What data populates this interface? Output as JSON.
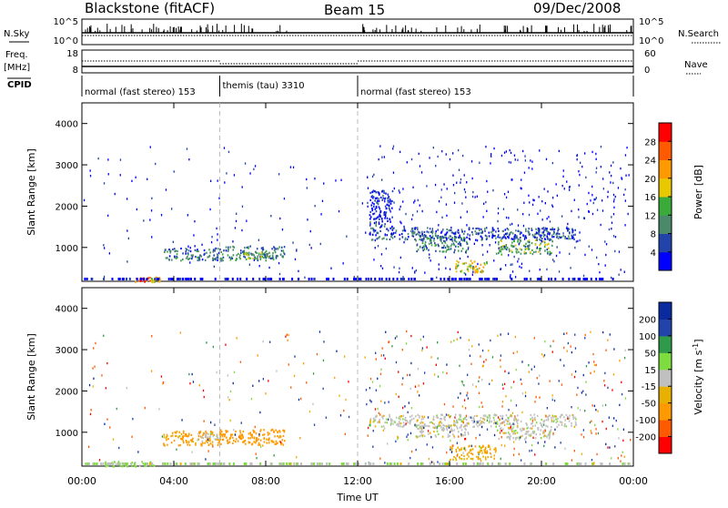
{
  "header": {
    "station": "Blackstone (fitACF)",
    "beam": "Beam 15",
    "date": "09/Dec/2008"
  },
  "top_panels": {
    "nsky_label": "N.Sky",
    "nsky_ticks": [
      "10^5",
      "10^0"
    ],
    "nsearch_label": "N.Search",
    "nsearch_ticks": [
      "10^5",
      "10^0"
    ],
    "freq_label": "Freq.",
    "freq_unit": "[MHz]",
    "freq_ticks": [
      "18",
      "8"
    ],
    "nave_label": "Nave",
    "nave_ticks": [
      "60",
      "0"
    ],
    "cpid_label": "CPID"
  },
  "cpid_segments": [
    {
      "label": "normal (fast stereo) 153",
      "start_hour": 0,
      "end_hour": 6
    },
    {
      "label": "themis (tau) 3310",
      "start_hour": 6,
      "end_hour": 12
    },
    {
      "label": "normal (fast stereo) 153",
      "start_hour": 12,
      "end_hour": 24
    }
  ],
  "colors": {
    "power_scale": [
      "#0000ff",
      "#2244aa",
      "#4a8a6a",
      "#3aaa3a",
      "#e8c800",
      "#ff9900",
      "#ff5a00",
      "#ff0000"
    ],
    "velocity_scale": [
      "#ff0000",
      "#ff5a00",
      "#ff9900",
      "#e8b000",
      "#c0c0c0",
      "#7fdc3f",
      "#2f9a4a",
      "#2244aa",
      "#0a2aa0"
    ]
  },
  "chart_data": [
    {
      "type": "heatmap",
      "name": "power",
      "xlabel": "",
      "ylabel": "Slant Range [km]",
      "xlim": [
        0,
        24
      ],
      "ylim": [
        180,
        4500
      ],
      "yticks": [
        1000,
        2000,
        3000,
        4000
      ],
      "colorbar": {
        "label": "Power [dB]",
        "range": [
          0,
          32
        ],
        "ticks": [
          4,
          8,
          12,
          16,
          20,
          24,
          28
        ]
      },
      "regions": [
        {
          "t0": 2.3,
          "t1": 3.0,
          "r0": 180,
          "r1": 300,
          "level": 0.8
        },
        {
          "t0": 3.0,
          "t1": 3.4,
          "r0": 180,
          "r1": 300,
          "level": 0.6
        },
        {
          "t0": 3.5,
          "t1": 6.0,
          "r0": 700,
          "r1": 1000,
          "level": 0.25
        },
        {
          "t0": 6.0,
          "t1": 8.8,
          "r0": 700,
          "r1": 1050,
          "level": 0.3
        },
        {
          "t0": 7.0,
          "t1": 8.2,
          "r0": 750,
          "r1": 900,
          "level": 0.45
        },
        {
          "t0": 12.5,
          "t1": 21.5,
          "r0": 1200,
          "r1": 1500,
          "level": 0.2
        },
        {
          "t0": 14.5,
          "t1": 16.8,
          "r0": 900,
          "r1": 1300,
          "level": 0.3
        },
        {
          "t0": 16.2,
          "t1": 17.6,
          "r0": 400,
          "r1": 700,
          "level": 0.55
        },
        {
          "t0": 18.0,
          "t1": 20.5,
          "r0": 850,
          "r1": 1200,
          "level": 0.4
        },
        {
          "t0": 12.5,
          "t1": 13.5,
          "r0": 1500,
          "r1": 2400,
          "level": 0.1
        }
      ]
    },
    {
      "type": "heatmap",
      "name": "velocity",
      "xlabel": "Time UT",
      "ylabel": "Slant Range [km]",
      "xlim": [
        0,
        24
      ],
      "ylim": [
        180,
        4500
      ],
      "xticks": [
        "00:00",
        "04:00",
        "08:00",
        "12:00",
        "16:00",
        "20:00",
        "00:00"
      ],
      "yticks": [
        1000,
        2000,
        3000,
        4000
      ],
      "colorbar": {
        "label": "Velocity [m s^-1]",
        "ticks": [
          "200",
          "100",
          "50",
          "15",
          "-15",
          "-50",
          "-100",
          "-200"
        ]
      },
      "regions": [
        {
          "t0": 0.8,
          "t1": 3.3,
          "r0": 180,
          "r1": 320,
          "value": 30
        },
        {
          "t0": 3.5,
          "t1": 6.0,
          "r0": 700,
          "r1": 1050,
          "value": -60
        },
        {
          "t0": 5.0,
          "t1": 6.0,
          "r0": 800,
          "r1": 1000,
          "value": 0
        },
        {
          "t0": 6.0,
          "t1": 8.8,
          "r0": 700,
          "r1": 1100,
          "value": -80
        },
        {
          "t0": 12.5,
          "t1": 21.5,
          "r0": 1150,
          "r1": 1450,
          "value": 0
        },
        {
          "t0": 14.5,
          "t1": 16.8,
          "r0": 900,
          "r1": 1200,
          "value": 0
        },
        {
          "t0": 16.0,
          "t1": 18.0,
          "r0": 350,
          "r1": 700,
          "value": -40
        },
        {
          "t0": 18.0,
          "t1": 20.5,
          "r0": 850,
          "r1": 1150,
          "value": 0
        }
      ]
    }
  ]
}
